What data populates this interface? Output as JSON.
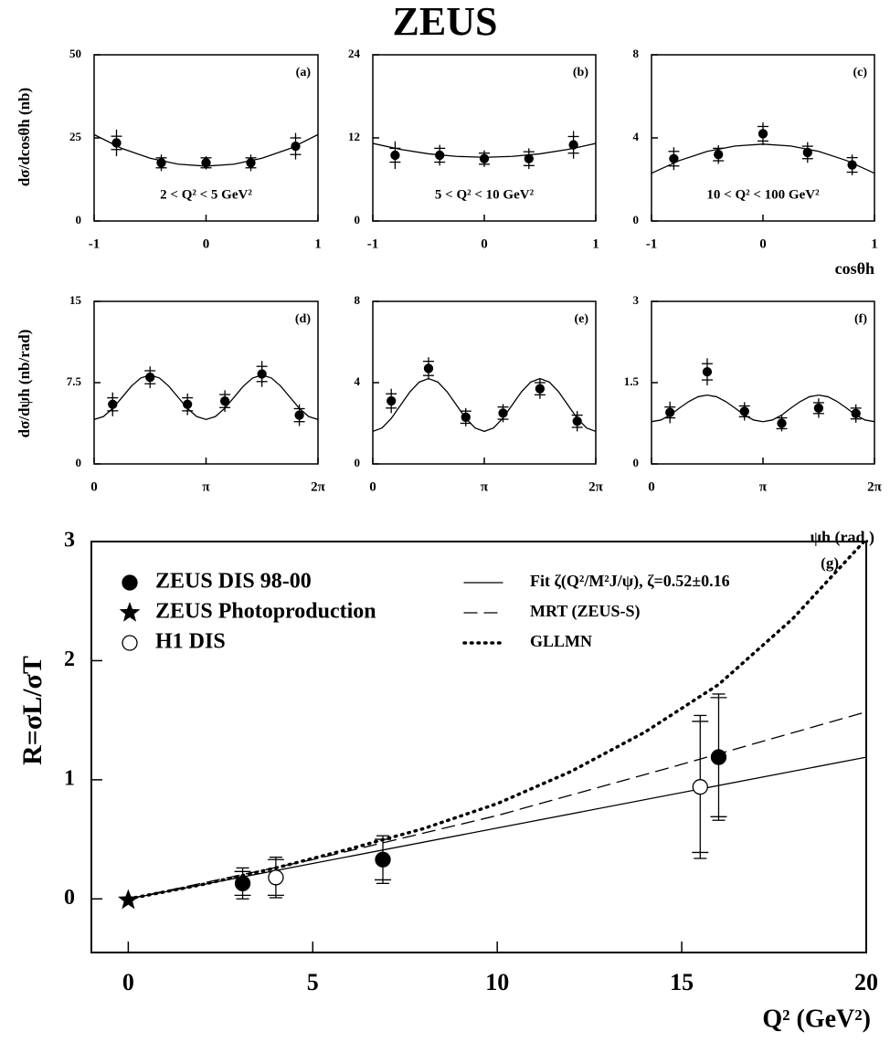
{
  "title": "ZEUS",
  "chart_data": [
    {
      "type": "scatter",
      "label": "(a)",
      "annotation": "2 < Q² < 5 GeV²",
      "ylabel": "dσ/dcosθh (nb)",
      "xlim": [
        -1,
        1
      ],
      "ylim": [
        0,
        50
      ],
      "xticks": [
        -1,
        0,
        1
      ],
      "yticks": [
        0,
        25,
        50
      ],
      "series": [
        {
          "marker": "filled-circle",
          "x": [
            -0.8,
            -0.4,
            0,
            0.4,
            0.8
          ],
          "values": [
            23.5,
            17.5,
            17.5,
            17.5,
            22.5
          ],
          "errors": [
            4,
            2.5,
            2,
            2.5,
            4
          ],
          "stat_errors": [
            2,
            1.5,
            1.5,
            1.5,
            2.5
          ]
        },
        {
          "line": "solid",
          "x": [
            -1,
            -0.75,
            -0.5,
            -0.25,
            0,
            0.25,
            0.5,
            0.75,
            1
          ],
          "values": [
            26,
            21.8,
            18.9,
            17.1,
            16.5,
            17.1,
            18.9,
            21.8,
            26
          ]
        }
      ]
    },
    {
      "type": "scatter",
      "label": "(b)",
      "annotation": "5 < Q² < 10 GeV²",
      "xlim": [
        -1,
        1
      ],
      "ylim": [
        0,
        24
      ],
      "xticks": [
        -1,
        0,
        1
      ],
      "yticks": [
        0,
        12,
        24
      ],
      "series": [
        {
          "marker": "filled-circle",
          "x": [
            -0.8,
            -0.4,
            0,
            0.4,
            0.8
          ],
          "values": [
            9.5,
            9.5,
            9,
            9,
            11
          ],
          "errors": [
            2,
            1.5,
            1.2,
            1.5,
            2
          ],
          "stat_errors": [
            1,
            1,
            0.8,
            1,
            1.2
          ]
        },
        {
          "line": "solid",
          "x": [
            -1,
            -0.75,
            -0.5,
            -0.25,
            0,
            0.25,
            0.5,
            0.75,
            1
          ],
          "values": [
            11.2,
            10.33,
            9.7,
            9.33,
            9.2,
            9.33,
            9.7,
            10.33,
            11.2
          ]
        }
      ]
    },
    {
      "type": "scatter",
      "label": "(c)",
      "annotation": "10 < Q² < 100 GeV²",
      "xlabel": "cosθh",
      "xlim": [
        -1,
        1
      ],
      "ylim": [
        0,
        8
      ],
      "xticks": [
        -1,
        0,
        1
      ],
      "yticks": [
        0,
        4,
        8
      ],
      "series": [
        {
          "marker": "filled-circle",
          "x": [
            -0.8,
            -0.4,
            0,
            0.4,
            0.8
          ],
          "values": [
            3,
            3.2,
            4.2,
            3.3,
            2.7
          ],
          "errors": [
            0.55,
            0.45,
            0.55,
            0.5,
            0.5
          ],
          "stat_errors": [
            0.35,
            0.3,
            0.35,
            0.3,
            0.35
          ]
        },
        {
          "line": "solid",
          "x": [
            -1,
            -0.75,
            -0.5,
            -0.25,
            0,
            0.25,
            0.5,
            0.75,
            1
          ],
          "values": [
            2.3,
            2.91,
            3.35,
            3.61,
            3.7,
            3.61,
            3.35,
            2.91,
            2.3
          ]
        }
      ]
    },
    {
      "type": "scatter",
      "label": "(d)",
      "ylabel": "dσ/dψh (nb/rad)",
      "xlim": [
        0,
        6.2832
      ],
      "ylim": [
        0,
        15
      ],
      "xticks": [
        0,
        {
          "value": 3.1416,
          "label": "π"
        },
        {
          "value": 6.2832,
          "label": "2π"
        }
      ],
      "yticks": [
        0,
        7.5,
        15
      ],
      "series": [
        {
          "marker": "filled-circle",
          "x": [
            0.52,
            1.57,
            2.62,
            3.67,
            4.71,
            5.76
          ],
          "values": [
            5.5,
            8,
            5.5,
            5.8,
            8.3,
            4.5
          ],
          "errors": [
            1.1,
            1,
            1,
            1,
            1.2,
            1
          ],
          "stat_errors": [
            0.6,
            0.6,
            0.6,
            0.6,
            0.7,
            0.6
          ]
        },
        {
          "line": "solid",
          "x": [
            0,
            0.2618,
            0.5236,
            0.7854,
            1.0472,
            1.309,
            1.5708,
            1.8326,
            2.0944,
            2.3562,
            2.618,
            2.8798,
            3.1416,
            3.4034,
            3.6652,
            3.927,
            4.1888,
            4.4506,
            4.7124,
            4.9742,
            5.236,
            5.4978,
            5.7596,
            6.0214,
            6.2832
          ],
          "values": [
            4.1,
            4.37,
            5.13,
            6.15,
            7.18,
            7.93,
            8.2,
            7.93,
            7.18,
            6.15,
            5.13,
            4.37,
            4.1,
            4.37,
            5.13,
            6.15,
            7.18,
            7.93,
            8.2,
            7.93,
            7.18,
            6.15,
            5.13,
            4.37,
            4.1
          ]
        }
      ]
    },
    {
      "type": "scatter",
      "label": "(e)",
      "xlim": [
        0,
        6.2832
      ],
      "ylim": [
        0,
        8
      ],
      "xticks": [
        0,
        {
          "value": 3.1416,
          "label": "π"
        },
        {
          "value": 6.2832,
          "label": "2π"
        }
      ],
      "yticks": [
        0,
        4,
        8
      ],
      "series": [
        {
          "marker": "filled-circle",
          "x": [
            0.52,
            1.57,
            2.62,
            3.67,
            4.71,
            5.76
          ],
          "values": [
            3.1,
            4.7,
            2.3,
            2.5,
            3.7,
            2.1
          ],
          "errors": [
            0.6,
            0.55,
            0.45,
            0.45,
            0.5,
            0.5
          ],
          "stat_errors": [
            0.35,
            0.35,
            0.3,
            0.3,
            0.3,
            0.3
          ]
        },
        {
          "line": "solid",
          "x": [
            0,
            0.2618,
            0.5236,
            0.7854,
            1.0472,
            1.309,
            1.5708,
            1.8326,
            2.0944,
            2.3562,
            2.618,
            2.8798,
            3.1416,
            3.4034,
            3.6652,
            3.927,
            4.1888,
            4.4506,
            4.7124,
            4.9742,
            5.236,
            5.4978,
            5.7596,
            6.0214,
            6.2832
          ],
          "values": [
            1.6,
            1.77,
            2.25,
            2.9,
            3.55,
            4.03,
            4.2,
            4.03,
            3.55,
            2.9,
            2.25,
            1.77,
            1.6,
            1.77,
            2.25,
            2.9,
            3.55,
            4.03,
            4.2,
            4.03,
            3.55,
            2.9,
            2.25,
            1.77,
            1.6
          ]
        }
      ]
    },
    {
      "type": "scatter",
      "label": "(f)",
      "xlabel": "ψh (rad.)",
      "xlim": [
        0,
        6.2832
      ],
      "ylim": [
        0,
        3
      ],
      "xticks": [
        0,
        {
          "value": 3.1416,
          "label": "π"
        },
        {
          "value": 6.2832,
          "label": "2π"
        }
      ],
      "yticks": [
        0,
        1.5,
        3
      ],
      "series": [
        {
          "marker": "filled-circle",
          "x": [
            0.52,
            1.57,
            2.62,
            3.67,
            4.71,
            5.76
          ],
          "values": [
            0.95,
            1.7,
            0.97,
            0.75,
            1.03,
            0.93
          ],
          "errors": [
            0.2,
            0.25,
            0.17,
            0.15,
            0.18,
            0.17
          ],
          "stat_errors": [
            0.1,
            0.15,
            0.1,
            0.1,
            0.1,
            0.1
          ]
        },
        {
          "line": "solid",
          "x": [
            0,
            0.2618,
            0.5236,
            0.7854,
            1.0472,
            1.309,
            1.5708,
            1.8326,
            2.0944,
            2.3562,
            2.618,
            2.8798,
            3.1416,
            3.4034,
            3.6652,
            3.927,
            4.1888,
            4.4506,
            4.7124,
            4.9742,
            5.236,
            5.4978,
            5.7596,
            6.0214,
            6.2832
          ],
          "values": [
            0.78,
            0.81,
            0.9,
            1.03,
            1.15,
            1.24,
            1.27,
            1.24,
            1.15,
            1.03,
            0.9,
            0.81,
            0.78,
            0.81,
            0.9,
            1.03,
            1.15,
            1.24,
            1.27,
            1.24,
            1.15,
            1.03,
            0.9,
            0.81,
            0.78
          ]
        }
      ]
    },
    {
      "type": "scatter",
      "label": "(g)",
      "ylabel": "R=σL/σT",
      "xlabel": "Q² (GeV²)",
      "xlim": [
        -1,
        20
      ],
      "ylim": [
        -0.45,
        3
      ],
      "xticks": [
        0,
        5,
        10,
        15,
        20
      ],
      "yticks": [
        0,
        1,
        2,
        3
      ],
      "series": [
        {
          "name": "ZEUS DIS 98-00",
          "marker": "filled-circle",
          "x": [
            3.1,
            6.9,
            16
          ],
          "values": [
            0.13,
            0.33,
            1.19
          ],
          "errors": [
            0.13,
            0.2,
            0.53
          ],
          "stat_errors": [
            0.1,
            0.17,
            0.5
          ]
        },
        {
          "name": "ZEUS Photoproduction",
          "marker": "star",
          "x": [
            0
          ],
          "values": [
            -0.01
          ]
        },
        {
          "name": "H1 DIS",
          "marker": "open-circle",
          "x": [
            4,
            15.5
          ],
          "values": [
            0.18,
            0.94
          ],
          "errors": [
            0.17,
            0.6
          ],
          "stat_errors": [
            0.15,
            0.55
          ]
        },
        {
          "name": "Fit ζ(Q²/M²J/ψ), ζ=0.52±0.16",
          "line": "solid",
          "x": [
            0,
            20
          ],
          "values": [
            0,
            1.19
          ]
        },
        {
          "name": "MRT (ZEUS-S)",
          "line": "dashed",
          "x": [
            0,
            5,
            10,
            15,
            20
          ],
          "values": [
            0,
            0.33,
            0.7,
            1.13,
            1.57
          ]
        },
        {
          "name": "GLLMN",
          "line": "dotted",
          "x": [
            0,
            2,
            4,
            6,
            8,
            10,
            12,
            14,
            16,
            18,
            20
          ],
          "values": [
            0,
            0.12,
            0.26,
            0.42,
            0.59,
            0.8,
            1.07,
            1.4,
            1.8,
            2.35,
            3.02
          ]
        }
      ]
    }
  ]
}
